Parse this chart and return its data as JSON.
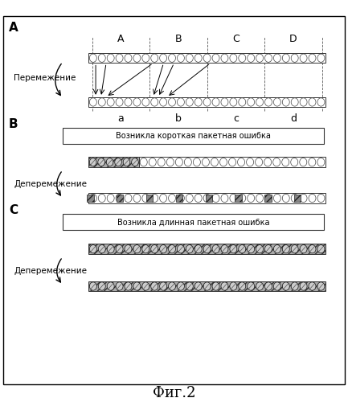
{
  "title": "Фиг.2",
  "background": "#ffffff",
  "panel_A_label": "A",
  "panel_B_label": "B",
  "panel_C_label": "C",
  "interleave_label": "Перемежение",
  "deinterleave_label_B": "Деперемежение",
  "deinterleave_label_C": "Деперемежение",
  "box_B_label": "Возникла короткая пакетная ошибка",
  "box_C_label": "Возникла длинная пакетная ошибка",
  "seg_labels_top": [
    "A",
    "B",
    "C",
    "D"
  ],
  "seg_labels_bot": [
    "a",
    "b",
    "c",
    "d"
  ]
}
